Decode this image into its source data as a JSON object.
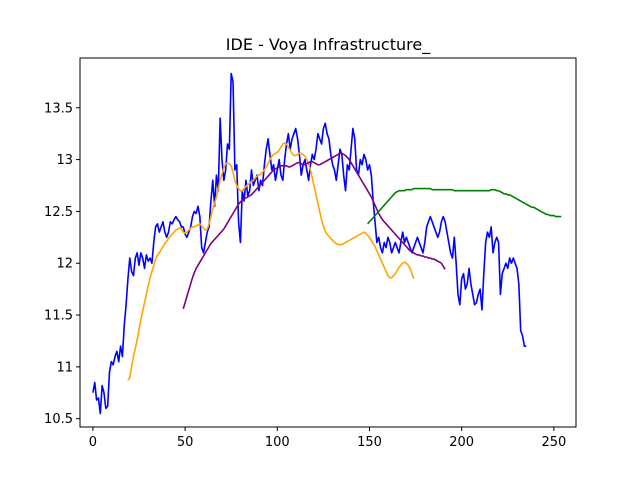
{
  "chart_data": {
    "type": "line",
    "title": "IDE - Voya Infrastructure_",
    "xlabel": "",
    "ylabel": "",
    "xlim": [
      -7,
      262
    ],
    "ylim": [
      10.42,
      13.98
    ],
    "grid": false,
    "legend": "none",
    "x_ticks": [
      0,
      50,
      100,
      150,
      200,
      250
    ],
    "y_ticks": [
      10.5,
      11.0,
      11.5,
      12.0,
      12.5,
      13.0,
      13.5
    ],
    "series": [
      {
        "color": "#0000ff",
        "x_start": 0,
        "values": [
          10.75,
          10.85,
          10.68,
          10.7,
          10.55,
          10.82,
          10.75,
          10.6,
          10.62,
          10.95,
          11.05,
          11.02,
          11.1,
          11.15,
          11.05,
          11.2,
          11.1,
          11.4,
          11.6,
          11.85,
          12.05,
          11.92,
          11.88,
          12.05,
          12.1,
          11.98,
          12.1,
          12.05,
          11.95,
          12.08,
          12.02,
          12.05,
          12.0,
          12.2,
          12.35,
          12.38,
          12.3,
          12.35,
          12.4,
          12.3,
          12.25,
          12.3,
          12.4,
          12.38,
          12.42,
          12.45,
          12.42,
          12.4,
          12.35,
          12.35,
          12.28,
          12.25,
          12.3,
          12.35,
          12.45,
          12.5,
          12.48,
          12.55,
          12.45,
          12.15,
          12.1,
          12.2,
          12.3,
          12.35,
          12.6,
          12.8,
          12.55,
          12.85,
          12.7,
          13.4,
          13.0,
          12.8,
          12.9,
          13.15,
          13.1,
          13.83,
          13.75,
          12.9,
          12.95,
          12.4,
          12.2,
          12.7,
          12.6,
          12.8,
          12.65,
          12.7,
          12.9,
          12.75,
          12.8,
          12.85,
          12.7,
          12.8,
          12.75,
          12.95,
          13.1,
          13.2,
          13.05,
          12.9,
          12.95,
          12.8,
          12.9,
          13.0,
          12.85,
          12.8,
          13.0,
          13.15,
          13.25,
          13.1,
          13.2,
          13.25,
          13.3,
          13.2,
          13.05,
          12.85,
          12.95,
          13.0,
          12.9,
          12.8,
          12.95,
          13.05,
          13.0,
          13.1,
          13.25,
          13.2,
          13.15,
          13.3,
          13.35,
          13.25,
          13.2,
          13.05,
          12.95,
          12.9,
          12.8,
          12.95,
          13.1,
          13.05,
          12.85,
          12.7,
          12.95,
          12.9,
          13.1,
          13.3,
          13.2,
          12.9,
          12.85,
          13.0,
          12.95,
          13.05,
          13.0,
          12.9,
          12.95,
          12.85,
          12.6,
          12.4,
          12.2,
          12.25,
          12.15,
          12.1,
          12.2,
          12.15,
          12.25,
          12.2,
          12.1,
          12.15,
          12.2,
          12.15,
          12.1,
          12.2,
          12.3,
          12.2,
          12.25,
          12.2,
          12.15,
          12.1,
          12.15,
          12.2,
          12.25,
          12.2,
          12.15,
          12.1,
          12.2,
          12.35,
          12.4,
          12.45,
          12.4,
          12.35,
          12.3,
          12.25,
          12.3,
          12.4,
          12.45,
          12.4,
          12.3,
          12.2,
          12.1,
          12.05,
          12.25,
          12.0,
          11.7,
          11.6,
          11.85,
          11.9,
          11.75,
          11.8,
          11.95,
          11.8,
          11.7,
          11.6,
          11.62,
          11.7,
          11.75,
          11.55,
          11.9,
          12.2,
          12.3,
          12.25,
          12.35,
          12.1,
          12.2,
          12.25,
          12.2,
          11.7,
          11.9,
          11.95,
          12.0,
          11.95,
          12.05,
          12.0,
          12.05,
          12.0,
          11.95,
          11.8,
          11.35,
          11.3,
          11.2,
          11.2
        ]
      },
      {
        "color": "#ffa500",
        "x_start": 19,
        "values": [
          10.87,
          10.9,
          11.0,
          11.1,
          11.18,
          11.26,
          11.36,
          11.46,
          11.54,
          11.62,
          11.7,
          11.78,
          11.86,
          11.92,
          11.98,
          12.04,
          12.08,
          12.1,
          12.13,
          12.16,
          12.19,
          12.21,
          12.24,
          12.26,
          12.28,
          12.3,
          12.32,
          12.33,
          12.34,
          12.33,
          12.3,
          12.29,
          12.3,
          12.32,
          12.34,
          12.35,
          12.35,
          12.36,
          12.37,
          12.38,
          12.36,
          12.34,
          12.32,
          12.33,
          12.38,
          12.45,
          12.52,
          12.58,
          12.64,
          12.72,
          12.8,
          12.86,
          12.92,
          12.96,
          12.97,
          12.96,
          12.94,
          12.88,
          12.8,
          12.75,
          12.72,
          12.7,
          12.7,
          12.72,
          12.74,
          12.76,
          12.77,
          12.79,
          12.8,
          12.82,
          12.84,
          12.85,
          12.86,
          12.88,
          12.9,
          12.93,
          12.96,
          13.0,
          13.03,
          13.05,
          13.06,
          13.07,
          13.09,
          13.12,
          13.15,
          13.16,
          13.15,
          13.12,
          13.09,
          13.06,
          13.04,
          13.04,
          13.05,
          13.06,
          13.06,
          13.05,
          13.03,
          13.0,
          12.96,
          12.9,
          12.82,
          12.74,
          12.66,
          12.58,
          12.5,
          12.42,
          12.36,
          12.31,
          12.28,
          12.26,
          12.24,
          12.22,
          12.2,
          12.19,
          12.18,
          12.18,
          12.18,
          12.19,
          12.2,
          12.21,
          12.22,
          12.23,
          12.24,
          12.25,
          12.26,
          12.27,
          12.28,
          12.29,
          12.3,
          12.29,
          12.27,
          12.25,
          12.22,
          12.19,
          12.16,
          12.12,
          12.08,
          12.04,
          12.0,
          11.96,
          11.92,
          11.88,
          11.86,
          11.86,
          11.88,
          11.9,
          11.93,
          11.96,
          11.98,
          12.0,
          12.01,
          12.0,
          11.98,
          11.95,
          11.9,
          11.85
        ]
      },
      {
        "color": "#800080",
        "x_start": 49,
        "values": [
          11.56,
          11.62,
          11.68,
          11.74,
          11.8,
          11.86,
          11.91,
          11.95,
          11.98,
          12.01,
          12.04,
          12.07,
          12.1,
          12.13,
          12.16,
          12.19,
          12.21,
          12.23,
          12.25,
          12.27,
          12.29,
          12.31,
          12.33,
          12.36,
          12.39,
          12.42,
          12.45,
          12.48,
          12.51,
          12.54,
          12.57,
          12.59,
          12.61,
          12.62,
          12.63,
          12.64,
          12.65,
          12.66,
          12.68,
          12.7,
          12.72,
          12.74,
          12.76,
          12.78,
          12.8,
          12.82,
          12.84,
          12.86,
          12.88,
          12.9,
          12.91,
          12.92,
          12.93,
          12.94,
          12.94,
          12.94,
          12.94,
          12.93,
          12.93,
          12.94,
          12.95,
          12.96,
          12.97,
          12.97,
          12.96,
          12.95,
          12.95,
          12.96,
          12.97,
          12.98,
          12.98,
          12.97,
          12.96,
          12.95,
          12.95,
          12.96,
          12.97,
          12.98,
          12.99,
          13.0,
          13.01,
          13.02,
          13.03,
          13.04,
          13.05,
          13.06,
          13.06,
          13.05,
          13.04,
          13.02,
          13.0,
          12.97,
          12.94,
          12.91,
          12.88,
          12.85,
          12.82,
          12.79,
          12.76,
          12.73,
          12.7,
          12.67,
          12.64,
          12.6,
          12.56,
          12.52,
          12.48,
          12.45,
          12.42,
          12.4,
          12.38,
          12.36,
          12.34,
          12.32,
          12.3,
          12.28,
          12.26,
          12.24,
          12.22,
          12.2,
          12.18,
          12.16,
          12.14,
          12.12,
          12.11,
          12.1,
          12.09,
          12.08,
          12.08,
          12.07,
          12.07,
          12.06,
          12.06,
          12.05,
          12.05,
          12.04,
          12.04,
          12.03,
          12.02,
          12.01,
          12.0,
          11.97,
          11.94
        ]
      },
      {
        "color": "#008000",
        "x_start": 149,
        "values": [
          12.38,
          12.4,
          12.42,
          12.44,
          12.46,
          12.48,
          12.5,
          12.52,
          12.54,
          12.56,
          12.58,
          12.6,
          12.62,
          12.64,
          12.66,
          12.68,
          12.69,
          12.7,
          12.7,
          12.7,
          12.7,
          12.71,
          12.71,
          12.71,
          12.71,
          12.72,
          12.72,
          12.72,
          12.72,
          12.72,
          12.72,
          12.72,
          12.72,
          12.72,
          12.72,
          12.71,
          12.71,
          12.71,
          12.71,
          12.71,
          12.71,
          12.71,
          12.71,
          12.71,
          12.71,
          12.71,
          12.71,
          12.7,
          12.7,
          12.7,
          12.7,
          12.7,
          12.7,
          12.7,
          12.7,
          12.7,
          12.7,
          12.7,
          12.7,
          12.7,
          12.7,
          12.7,
          12.7,
          12.7,
          12.7,
          12.7,
          12.7,
          12.71,
          12.71,
          12.71,
          12.7,
          12.7,
          12.69,
          12.68,
          12.67,
          12.67,
          12.66,
          12.66,
          12.65,
          12.64,
          12.63,
          12.62,
          12.61,
          12.6,
          12.59,
          12.58,
          12.57,
          12.56,
          12.55,
          12.54,
          12.54,
          12.53,
          12.52,
          12.51,
          12.5,
          12.49,
          12.48,
          12.47,
          12.47,
          12.46,
          12.46,
          12.46,
          12.45,
          12.45,
          12.45,
          12.45
        ]
      }
    ]
  }
}
